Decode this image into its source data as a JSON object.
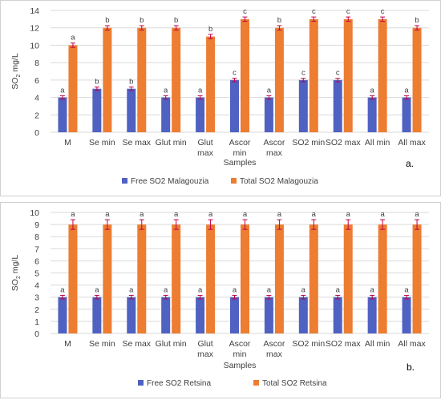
{
  "colors": {
    "free": "#4f62c2",
    "total": "#ed7d31",
    "grid": "#d9d9d9",
    "axis_text": "#404040",
    "error_bar": "#c0004a"
  },
  "chart_data": [
    {
      "type": "bar",
      "panel_label": "a.",
      "ylabel_main": "SO",
      "ylabel_sub": "2",
      "ylabel_unit": " mg/L",
      "xlabel": "Samples",
      "ylim": [
        0,
        14
      ],
      "yticks": [
        0,
        2,
        4,
        6,
        8,
        10,
        12,
        14
      ],
      "categories": [
        [
          "M"
        ],
        [
          "Se min"
        ],
        [
          "Se max"
        ],
        [
          "Glut min"
        ],
        [
          "Glut",
          "max"
        ],
        [
          "Ascor",
          "min"
        ],
        [
          "Ascor",
          "max"
        ],
        [
          "SO2 min"
        ],
        [
          "SO2 max"
        ],
        [
          "All min"
        ],
        [
          "All max"
        ]
      ],
      "series": [
        {
          "name": "Free SO2 Malagouzia",
          "color_key": "free",
          "values": [
            4,
            5,
            5,
            4,
            4,
            6,
            4,
            6,
            6,
            4,
            4
          ],
          "errors": [
            0.2,
            0.2,
            0.2,
            0.2,
            0.2,
            0.2,
            0.2,
            0.2,
            0.2,
            0.2,
            0.2
          ],
          "labels": [
            "a",
            "b",
            "b",
            "a",
            "a",
            "c",
            "a",
            "c",
            "c",
            "a",
            "a"
          ]
        },
        {
          "name": "Total SO2 Malagouzia",
          "color_key": "total",
          "values": [
            10,
            12,
            12,
            12,
            11,
            13,
            12,
            13,
            13,
            13,
            12
          ],
          "errors": [
            0.25,
            0.25,
            0.25,
            0.25,
            0.25,
            0.25,
            0.25,
            0.25,
            0.25,
            0.25,
            0.25
          ],
          "labels": [
            "a",
            "b",
            "b",
            "b",
            "b",
            "c",
            "b",
            "c",
            "c",
            "c",
            "b"
          ]
        }
      ],
      "grid": true,
      "legend_position": "bottom"
    },
    {
      "type": "bar",
      "panel_label": "b.",
      "ylabel_main": "SO",
      "ylabel_sub": "2",
      "ylabel_unit": " mg/L",
      "xlabel": "Samples",
      "ylim": [
        0,
        10
      ],
      "yticks": [
        0,
        1,
        2,
        3,
        4,
        5,
        6,
        7,
        8,
        9,
        10
      ],
      "categories": [
        [
          "M"
        ],
        [
          "Se min"
        ],
        [
          "Se max"
        ],
        [
          "Glut min"
        ],
        [
          "Glut",
          "max"
        ],
        [
          "Ascor",
          "min"
        ],
        [
          "Ascor",
          "max"
        ],
        [
          "SO2 min"
        ],
        [
          "SO2 max"
        ],
        [
          "All min"
        ],
        [
          "All max"
        ]
      ],
      "series": [
        {
          "name": "Free SO2 Retsina",
          "color_key": "free",
          "values": [
            3,
            3,
            3,
            3,
            3,
            3,
            3,
            3,
            3,
            3,
            3
          ],
          "errors": [
            0.15,
            0.15,
            0.15,
            0.15,
            0.15,
            0.15,
            0.15,
            0.15,
            0.15,
            0.15,
            0.15
          ],
          "labels": [
            "a",
            "a",
            "a",
            "a",
            "a",
            "a",
            "a",
            "a",
            "a",
            "a",
            "a"
          ]
        },
        {
          "name": "Total SO2 Retsina",
          "color_key": "total",
          "values": [
            9,
            9,
            9,
            9,
            9,
            9,
            9,
            9,
            9,
            9,
            9
          ],
          "errors": [
            0.4,
            0.4,
            0.4,
            0.4,
            0.4,
            0.4,
            0.4,
            0.4,
            0.4,
            0.4,
            0.4
          ],
          "labels": [
            "a",
            "a",
            "a",
            "a",
            "a",
            "a",
            "a",
            "a",
            "a",
            "a",
            "a"
          ]
        }
      ],
      "grid": true,
      "legend_position": "bottom"
    }
  ]
}
